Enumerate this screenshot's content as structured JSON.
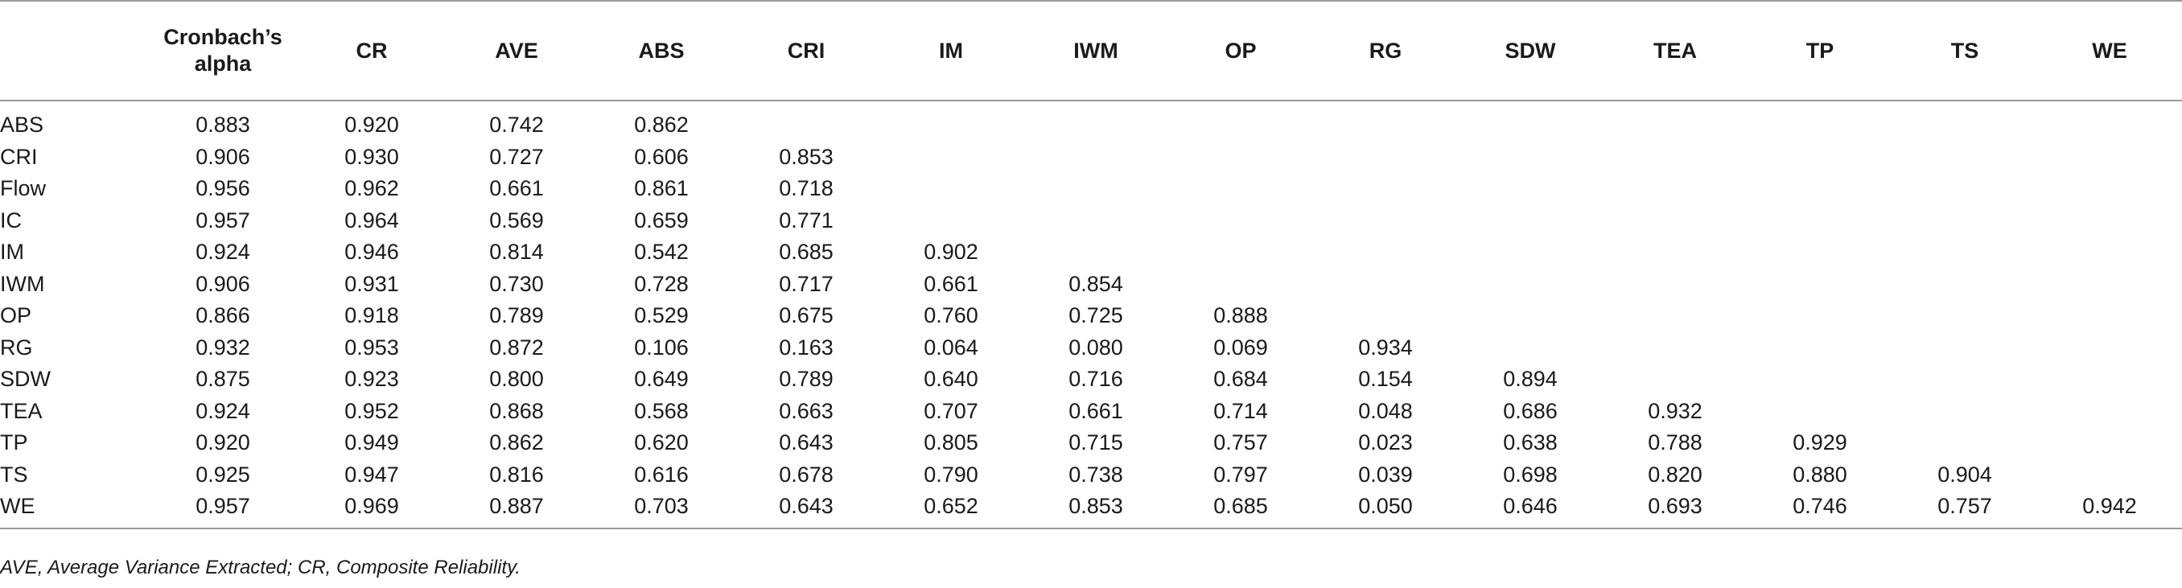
{
  "table": {
    "headers": [
      "",
      "Cronbach’s alpha",
      "CR",
      "AVE",
      "ABS",
      "CRI",
      "IM",
      "IWM",
      "OP",
      "RG",
      "SDW",
      "TEA",
      "TP",
      "TS",
      "WE"
    ],
    "rows": [
      {
        "label": "ABS",
        "cells": [
          "0.883",
          "0.920",
          "0.742",
          "0.862",
          "",
          "",
          "",
          "",
          "",
          "",
          "",
          "",
          "",
          ""
        ]
      },
      {
        "label": "CRI",
        "cells": [
          "0.906",
          "0.930",
          "0.727",
          "0.606",
          "0.853",
          "",
          "",
          "",
          "",
          "",
          "",
          "",
          "",
          ""
        ]
      },
      {
        "label": "Flow",
        "cells": [
          "0.956",
          "0.962",
          "0.661",
          "0.861",
          "0.718",
          "",
          "",
          "",
          "",
          "",
          "",
          "",
          "",
          ""
        ]
      },
      {
        "label": "IC",
        "cells": [
          "0.957",
          "0.964",
          "0.569",
          "0.659",
          "0.771",
          "",
          "",
          "",
          "",
          "",
          "",
          "",
          "",
          ""
        ]
      },
      {
        "label": "IM",
        "cells": [
          "0.924",
          "0.946",
          "0.814",
          "0.542",
          "0.685",
          "0.902",
          "",
          "",
          "",
          "",
          "",
          "",
          "",
          ""
        ]
      },
      {
        "label": "IWM",
        "cells": [
          "0.906",
          "0.931",
          "0.730",
          "0.728",
          "0.717",
          "0.661",
          "0.854",
          "",
          "",
          "",
          "",
          "",
          "",
          ""
        ]
      },
      {
        "label": "OP",
        "cells": [
          "0.866",
          "0.918",
          "0.789",
          "0.529",
          "0.675",
          "0.760",
          "0.725",
          "0.888",
          "",
          "",
          "",
          "",
          "",
          ""
        ]
      },
      {
        "label": "RG",
        "cells": [
          "0.932",
          "0.953",
          "0.872",
          "0.106",
          "0.163",
          "0.064",
          "0.080",
          "0.069",
          "0.934",
          "",
          "",
          "",
          "",
          ""
        ]
      },
      {
        "label": "SDW",
        "cells": [
          "0.875",
          "0.923",
          "0.800",
          "0.649",
          "0.789",
          "0.640",
          "0.716",
          "0.684",
          "0.154",
          "0.894",
          "",
          "",
          "",
          ""
        ]
      },
      {
        "label": "TEA",
        "cells": [
          "0.924",
          "0.952",
          "0.868",
          "0.568",
          "0.663",
          "0.707",
          "0.661",
          "0.714",
          "0.048",
          "0.686",
          "0.932",
          "",
          "",
          ""
        ]
      },
      {
        "label": "TP",
        "cells": [
          "0.920",
          "0.949",
          "0.862",
          "0.620",
          "0.643",
          "0.805",
          "0.715",
          "0.757",
          "0.023",
          "0.638",
          "0.788",
          "0.929",
          "",
          ""
        ]
      },
      {
        "label": "TS",
        "cells": [
          "0.925",
          "0.947",
          "0.816",
          "0.616",
          "0.678",
          "0.790",
          "0.738",
          "0.797",
          "0.039",
          "0.698",
          "0.820",
          "0.880",
          "0.904",
          ""
        ]
      },
      {
        "label": "WE",
        "cells": [
          "0.957",
          "0.969",
          "0.887",
          "0.703",
          "0.643",
          "0.652",
          "0.853",
          "0.685",
          "0.050",
          "0.646",
          "0.693",
          "0.746",
          "0.757",
          "0.942"
        ]
      }
    ]
  },
  "footnote": "AVE, Average Variance Extracted; CR, Composite Reliability."
}
